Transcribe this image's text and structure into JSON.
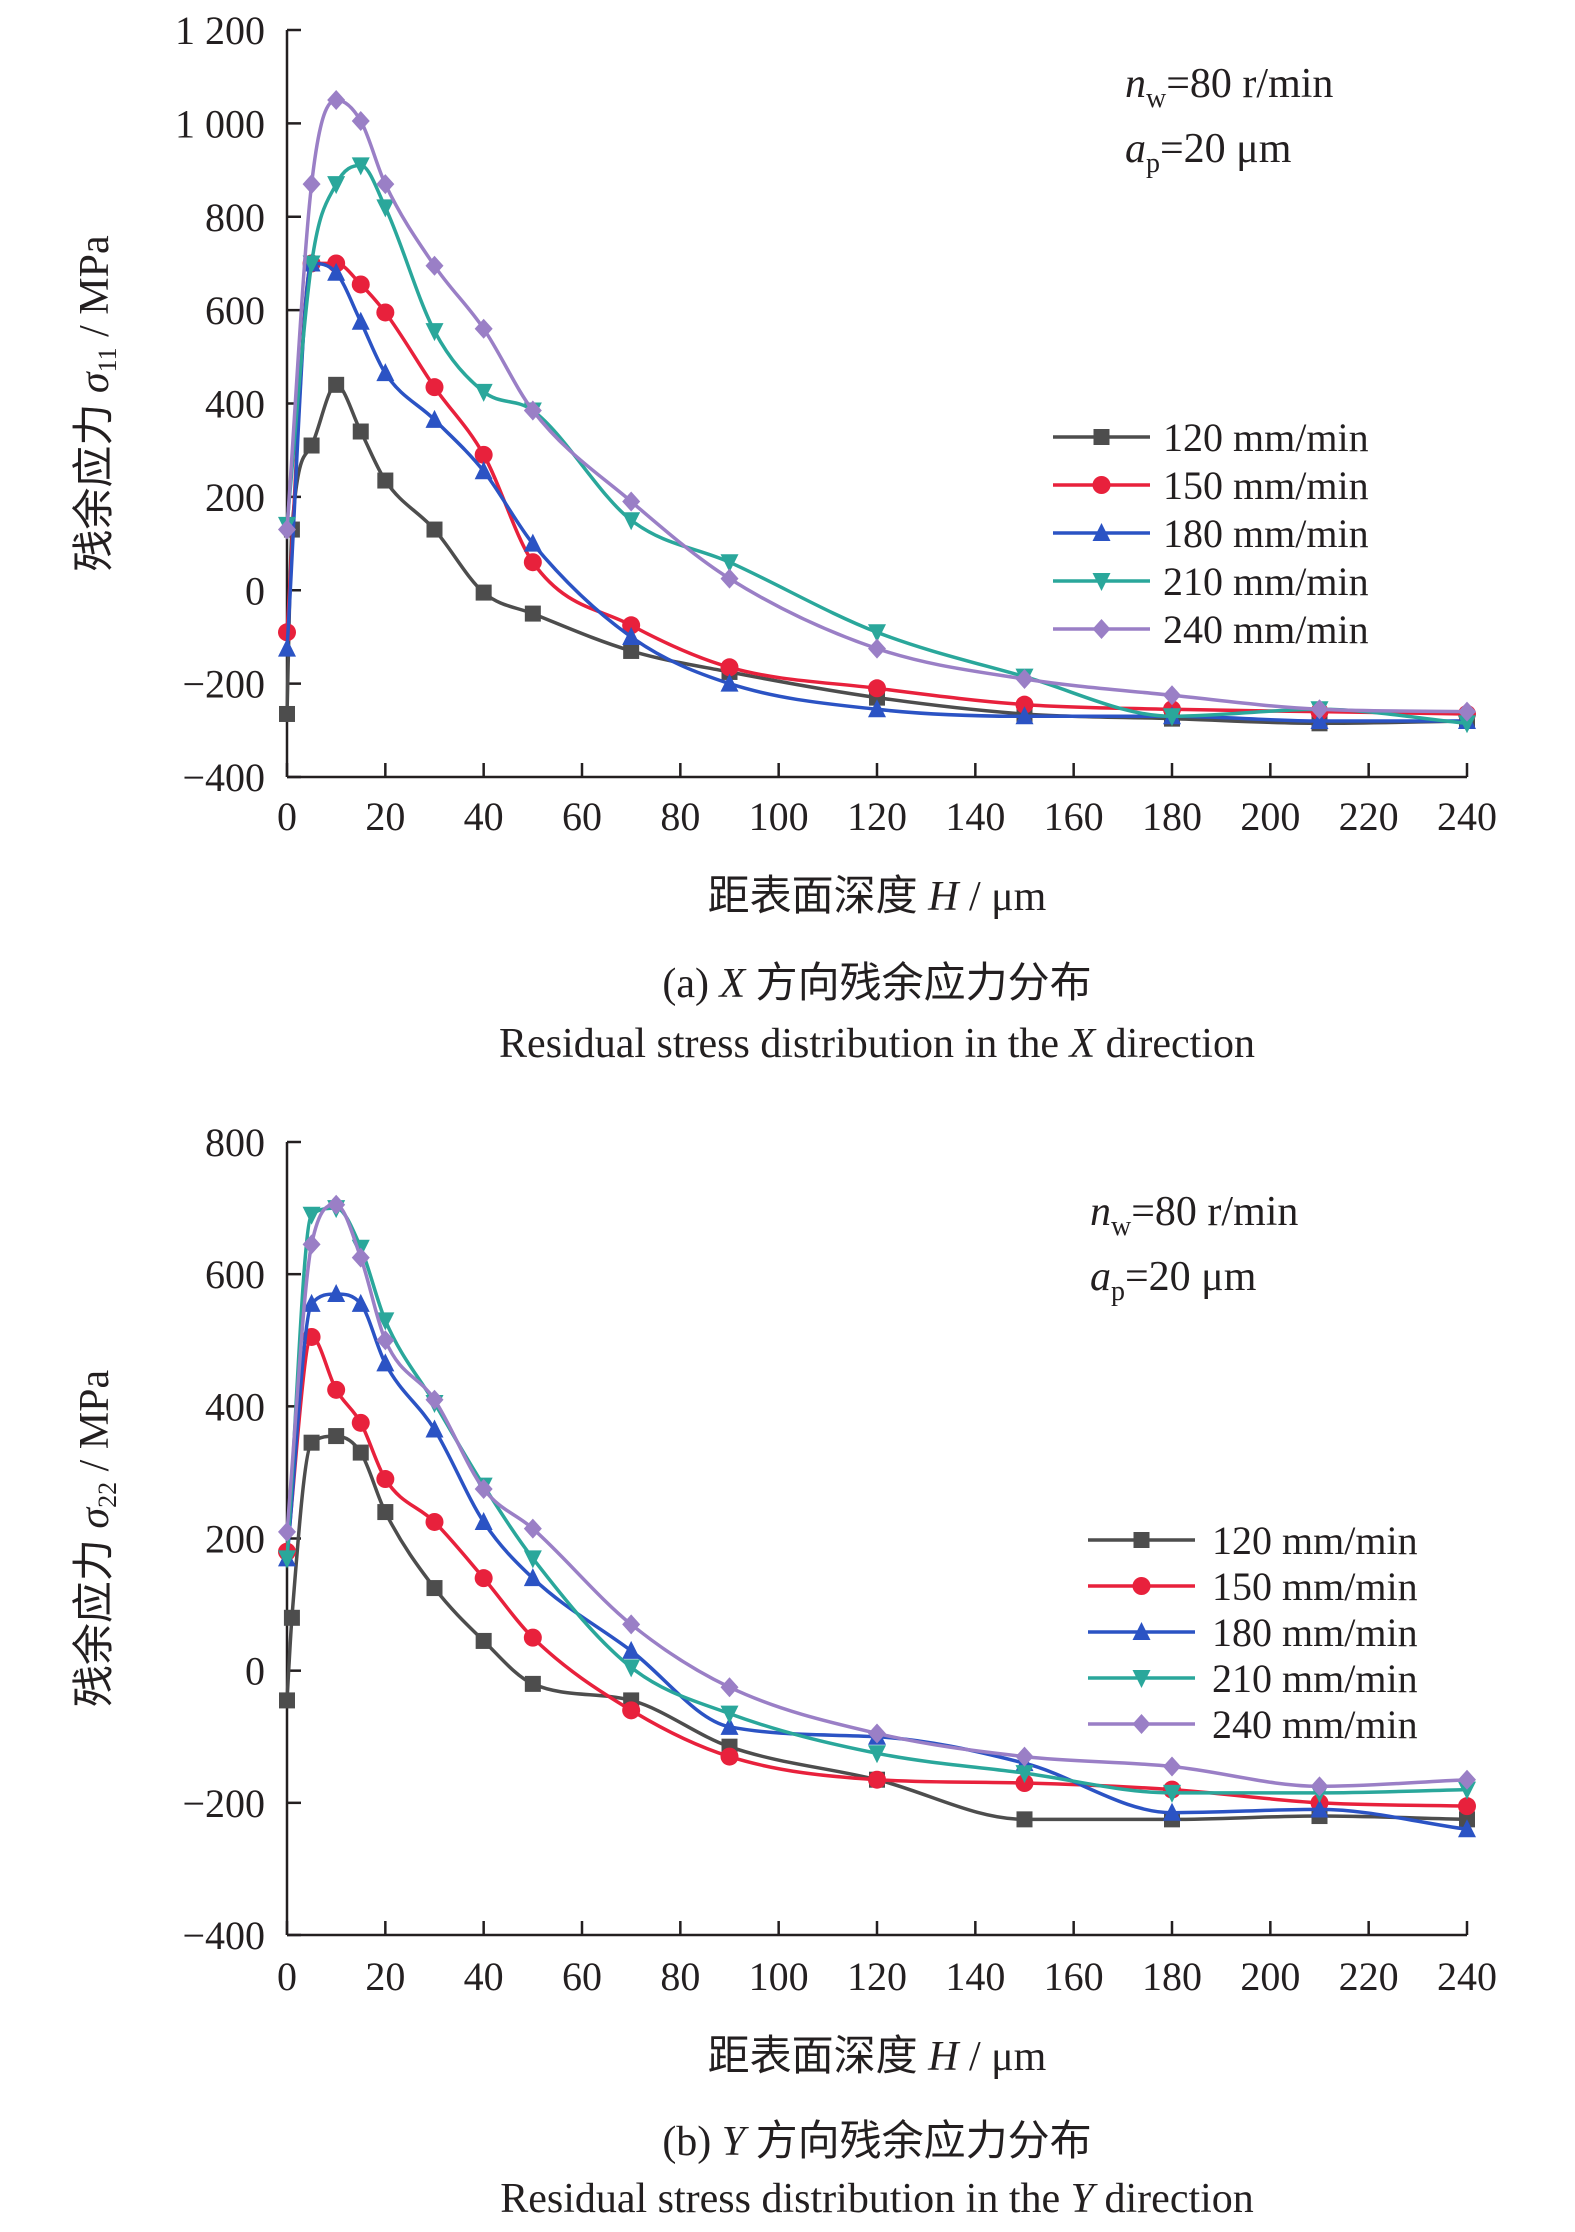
{
  "chart_data": [
    {
      "type": "line",
      "ylabel_prefix": "残余应力 ",
      "ylabel_symbol": "σ",
      "ylabel_sub": "11",
      "ylabel_suffix": " / MPa",
      "xlabel_prefix": "距表面深度 ",
      "xlabel_symbol": "H",
      "xlabel_suffix": " / μm",
      "xlim": [
        0,
        240
      ],
      "ylim": [
        -400,
        1200
      ],
      "xticks": [
        0,
        20,
        40,
        60,
        80,
        100,
        120,
        140,
        160,
        180,
        200,
        220,
        240
      ],
      "xtick_labels": [
        "0",
        "20",
        "40",
        "60",
        "80",
        "100",
        "120",
        "140",
        "160",
        "180",
        "200",
        "220",
        "240"
      ],
      "yticks": [
        -400,
        -200,
        0,
        200,
        400,
        600,
        800,
        1000,
        1200
      ],
      "ytick_labels": [
        "−400",
        "−200",
        "0",
        "200",
        "400",
        "600",
        "800",
        "1 000",
        "1 200"
      ],
      "params": {
        "nw": {
          "sym": "n",
          "sub": "w",
          "val": "=80 r/min"
        },
        "ap": {
          "sym": "a",
          "sub": "p",
          "val": "=20 μm"
        }
      },
      "caption_cn_prefix": "(a) ",
      "caption_cn_letter": "X",
      "caption_cn_rest": " 方向残余应力分布",
      "caption_en_prefix": "Residual stress distribution in the ",
      "caption_en_letter": "X",
      "caption_en_suffix": " direction",
      "legend_position": "right-middle",
      "series": [
        {
          "name": "120 mm/min",
          "color": "#4d4d4d",
          "marker": "square",
          "x": [
            0,
            1,
            5,
            10,
            15,
            20,
            30,
            40,
            50,
            70,
            90,
            120,
            150,
            180,
            210,
            240
          ],
          "y": [
            -265,
            130,
            310,
            440,
            340,
            235,
            130,
            -5,
            -50,
            -130,
            -175,
            -230,
            -265,
            -275,
            -285,
            -280
          ]
        },
        {
          "name": "150 mm/min",
          "color": "#e8213c",
          "marker": "circle",
          "x": [
            0,
            5,
            10,
            15,
            20,
            30,
            40,
            50,
            70,
            90,
            120,
            150,
            180,
            210,
            240
          ],
          "y": [
            -90,
            700,
            700,
            655,
            595,
            435,
            290,
            60,
            -75,
            -165,
            -210,
            -245,
            -255,
            -260,
            -265
          ]
        },
        {
          "name": "180 mm/min",
          "color": "#2b53c4",
          "marker": "triangle",
          "x": [
            0,
            5,
            10,
            15,
            20,
            30,
            40,
            50,
            70,
            90,
            120,
            150,
            180,
            210,
            240
          ],
          "y": [
            -125,
            700,
            680,
            575,
            465,
            365,
            255,
            100,
            -100,
            -200,
            -255,
            -270,
            -270,
            -280,
            -280
          ]
        },
        {
          "name": "210 mm/min",
          "color": "#2aa79b",
          "marker": "triangle-down",
          "x": [
            0,
            5,
            10,
            15,
            20,
            30,
            40,
            50,
            70,
            90,
            120,
            150,
            180,
            210,
            240
          ],
          "y": [
            140,
            700,
            870,
            910,
            820,
            555,
            425,
            385,
            150,
            60,
            -90,
            -185,
            -270,
            -255,
            -285
          ]
        },
        {
          "name": "240 mm/min",
          "color": "#9a7fc6",
          "marker": "diamond",
          "x": [
            0,
            5,
            10,
            15,
            20,
            30,
            40,
            50,
            70,
            90,
            120,
            150,
            180,
            210,
            240
          ],
          "y": [
            130,
            870,
            1050,
            1005,
            870,
            695,
            560,
            385,
            190,
            25,
            -125,
            -190,
            -225,
            -255,
            -260
          ]
        }
      ]
    },
    {
      "type": "line",
      "ylabel_prefix": "残余应力 ",
      "ylabel_symbol": "σ",
      "ylabel_sub": "22",
      "ylabel_suffix": " / MPa",
      "xlabel_prefix": "距表面深度 ",
      "xlabel_symbol": "H",
      "xlabel_suffix": " / μm",
      "xlim": [
        0,
        240
      ],
      "ylim": [
        -400,
        800
      ],
      "xticks": [
        0,
        20,
        40,
        60,
        80,
        100,
        120,
        140,
        160,
        180,
        200,
        220,
        240
      ],
      "xtick_labels": [
        "0",
        "20",
        "40",
        "60",
        "80",
        "100",
        "120",
        "140",
        "160",
        "180",
        "200",
        "220",
        "240"
      ],
      "yticks": [
        -400,
        -200,
        0,
        200,
        400,
        600,
        800
      ],
      "ytick_labels": [
        "−400",
        "−200",
        "0",
        "200",
        "400",
        "600",
        "800"
      ],
      "params": {
        "nw": {
          "sym": "n",
          "sub": "w",
          "val": "=80 r/min"
        },
        "ap": {
          "sym": "a",
          "sub": "p",
          "val": "=20 μm"
        }
      },
      "caption_cn_prefix": "(b) ",
      "caption_cn_letter": "Y",
      "caption_cn_rest": " 方向残余应力分布",
      "caption_en_prefix": "Residual stress distribution in the ",
      "caption_en_letter": "Y",
      "caption_en_suffix": " direction",
      "legend_position": "right-middle",
      "series": [
        {
          "name": "120 mm/min",
          "color": "#4d4d4d",
          "marker": "square",
          "x": [
            0,
            1,
            5,
            10,
            15,
            20,
            30,
            40,
            50,
            70,
            90,
            120,
            150,
            180,
            210,
            240
          ],
          "y": [
            -45,
            80,
            345,
            355,
            330,
            240,
            125,
            45,
            -20,
            -45,
            -115,
            -165,
            -225,
            -225,
            -220,
            -225
          ]
        },
        {
          "name": "150 mm/min",
          "color": "#e8213c",
          "marker": "circle",
          "x": [
            0,
            5,
            10,
            15,
            20,
            30,
            40,
            50,
            70,
            90,
            120,
            150,
            180,
            210,
            240
          ],
          "y": [
            180,
            505,
            425,
            375,
            290,
            225,
            140,
            50,
            -60,
            -130,
            -165,
            -170,
            -180,
            -200,
            -205
          ]
        },
        {
          "name": "180 mm/min",
          "color": "#2b53c4",
          "marker": "triangle",
          "x": [
            0,
            5,
            10,
            15,
            20,
            30,
            40,
            50,
            70,
            90,
            120,
            150,
            180,
            210,
            240
          ],
          "y": [
            170,
            555,
            570,
            555,
            465,
            365,
            225,
            140,
            30,
            -85,
            -100,
            -140,
            -215,
            -210,
            -240
          ]
        },
        {
          "name": "210 mm/min",
          "color": "#2aa79b",
          "marker": "triangle-down",
          "x": [
            0,
            5,
            10,
            15,
            20,
            30,
            40,
            50,
            70,
            90,
            120,
            150,
            180,
            210,
            240
          ],
          "y": [
            170,
            690,
            700,
            640,
            530,
            405,
            280,
            170,
            5,
            -65,
            -125,
            -155,
            -185,
            -185,
            -180
          ]
        },
        {
          "name": "240 mm/min",
          "color": "#9a7fc6",
          "marker": "diamond",
          "x": [
            0,
            5,
            10,
            15,
            20,
            30,
            40,
            50,
            70,
            90,
            120,
            150,
            180,
            210,
            240
          ],
          "y": [
            210,
            645,
            705,
            625,
            500,
            410,
            275,
            215,
            70,
            -25,
            -95,
            -130,
            -145,
            -175,
            -165
          ]
        }
      ]
    }
  ]
}
